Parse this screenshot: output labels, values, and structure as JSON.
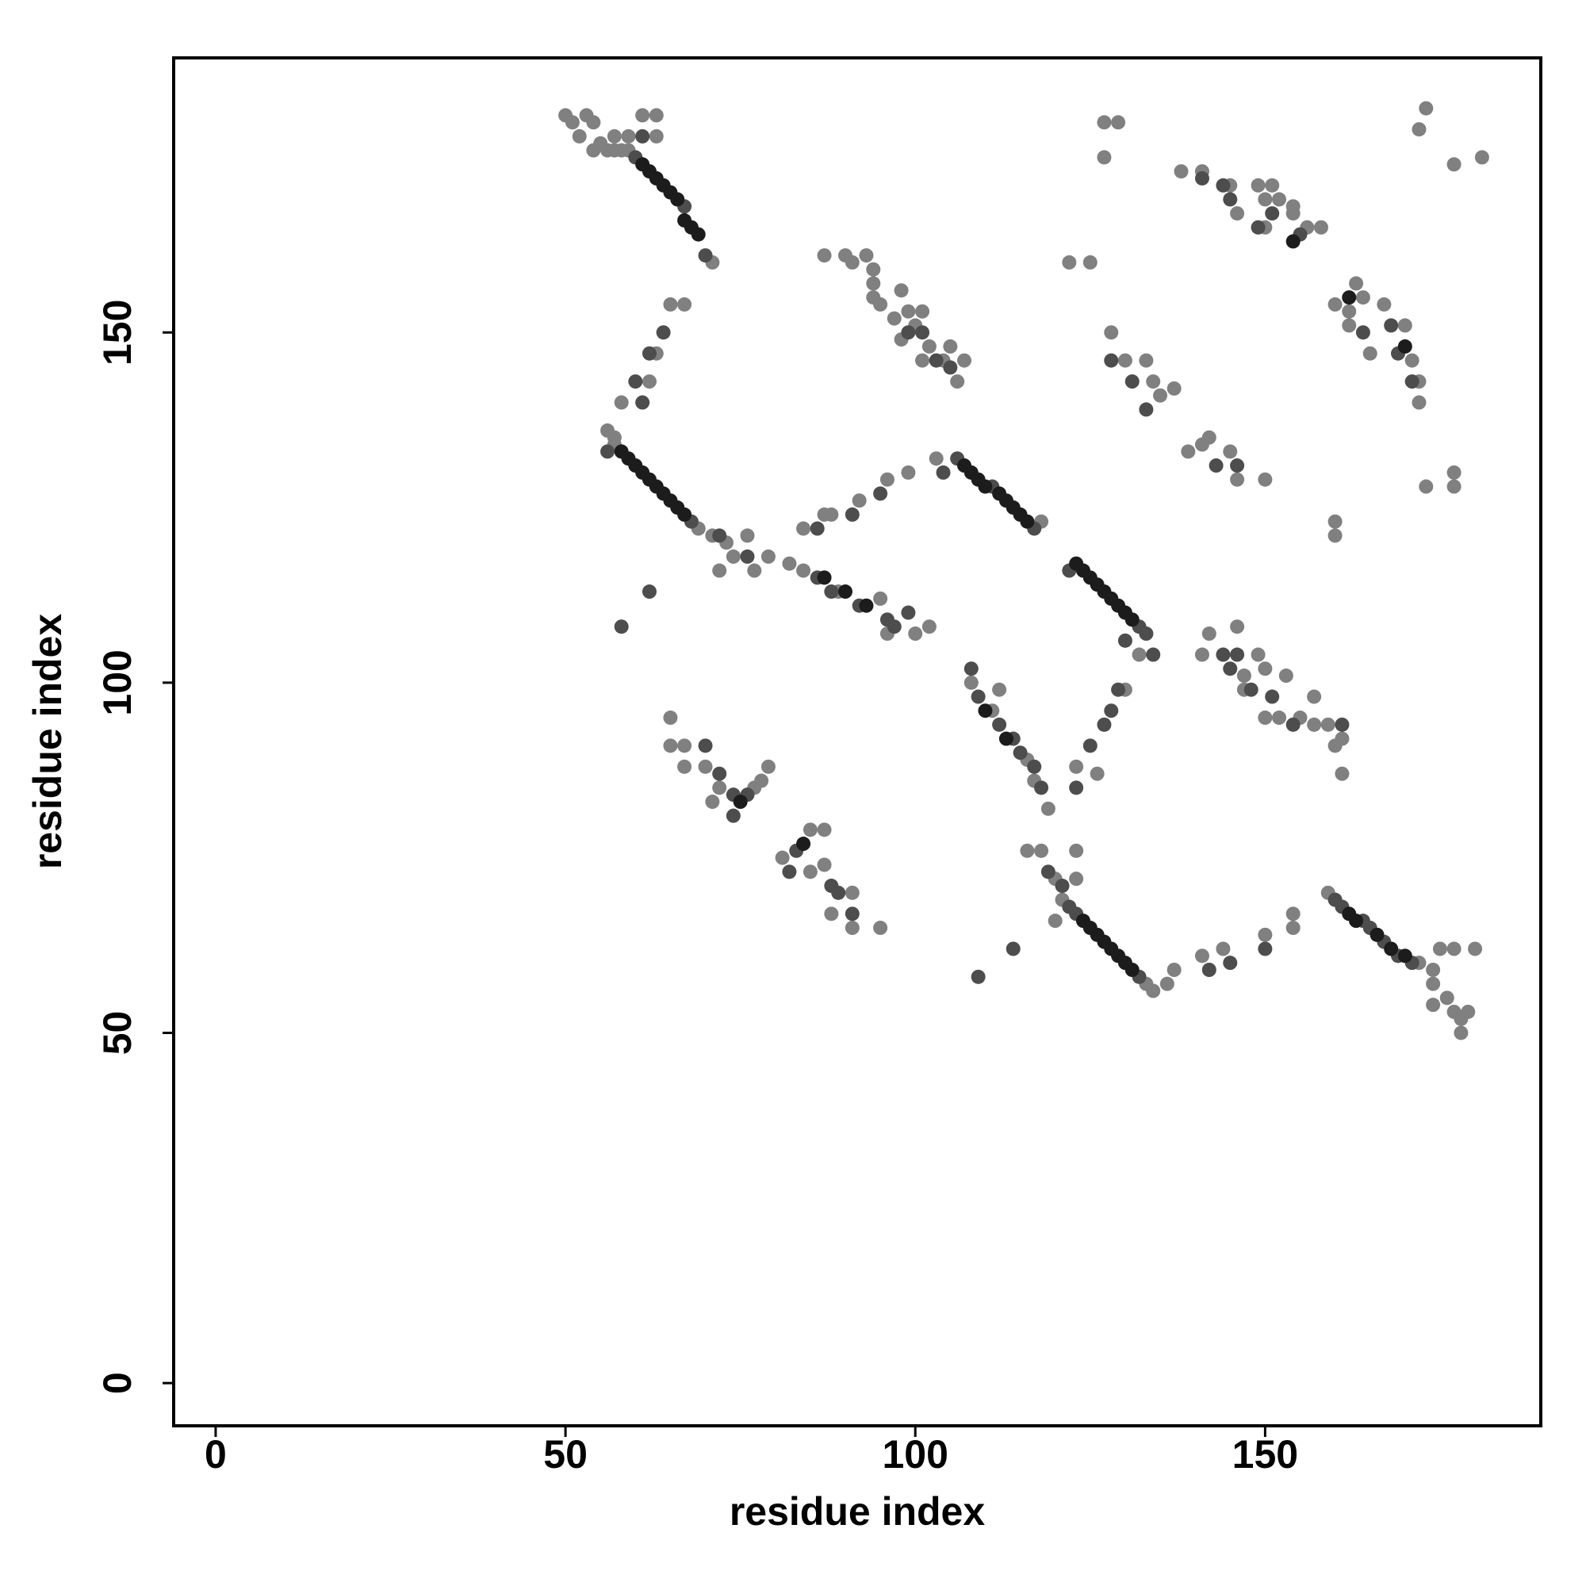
{
  "chart_data": {
    "type": "scatter",
    "xlabel": "residue index",
    "ylabel": "residue index",
    "xlim": [
      -6,
      189.4
    ],
    "ylim": [
      -6.1,
      189.2
    ],
    "xticks": [
      0,
      50,
      100,
      150
    ],
    "yticks": [
      0,
      50,
      100,
      150
    ],
    "series": [
      {
        "color": "#808080",
        "x": [
          50,
          51,
          53,
          54,
          52,
          55,
          54,
          56,
          57,
          58,
          59,
          57,
          59,
          61,
          63,
          63,
          71,
          65,
          67,
          63,
          62,
          58,
          57,
          57,
          56,
          69,
          71,
          73,
          74,
          76,
          77,
          72,
          82,
          79,
          84,
          89,
          95,
          100,
          102,
          96,
          84,
          87,
          88,
          92,
          96,
          99,
          103,
          118,
          87,
          90,
          91,
          93,
          94,
          94,
          94,
          95,
          98,
          97,
          99,
          101,
          102,
          104,
          106,
          107,
          98,
          101,
          105,
          100,
          123,
          126,
          108,
          111,
          116,
          117,
          119,
          112,
          116,
          118,
          120,
          121,
          133,
          134,
          136,
          123,
          120,
          123,
          65,
          65,
          67,
          67,
          70,
          72,
          77,
          78,
          79,
          71,
          81,
          85,
          87,
          85,
          87,
          88,
          91,
          91,
          95,
          137,
          141,
          144,
          150,
          154,
          154,
          159,
          172,
          174,
          174,
          176,
          177,
          178,
          179,
          178,
          180,
          177,
          175,
          174,
          141,
          142,
          147,
          149,
          150,
          150,
          153,
          155,
          157,
          157,
          159,
          160,
          161,
          161,
          146,
          147,
          152,
          128,
          130,
          133,
          134,
          135,
          137,
          130,
          132,
          139,
          141,
          142,
          145,
          146,
          150,
          138,
          141,
          146,
          145,
          149,
          150,
          150,
          152,
          154,
          156,
          158,
          154,
          151,
          160,
          163,
          162,
          164,
          162,
          165,
          167,
          170,
          171,
          172,
          172,
          160,
          160,
          173,
          177,
          177,
          127,
          129,
          127,
          173,
          172,
          177,
          181,
          122,
          125
        ],
        "y": [
          181,
          180,
          181,
          180,
          178,
          177,
          176,
          176,
          176,
          176,
          176,
          178,
          178,
          181,
          181,
          178,
          160,
          154,
          154,
          147,
          143,
          140,
          134,
          135,
          136,
          122,
          121,
          120,
          118,
          121,
          116,
          116,
          117,
          118,
          116,
          113,
          112,
          107,
          108,
          107,
          122,
          124,
          124,
          126,
          129,
          130,
          132,
          123,
          161,
          161,
          160,
          161,
          159,
          157,
          155,
          154,
          156,
          152,
          153,
          153,
          148,
          146,
          143,
          146,
          149,
          146,
          148,
          151,
          88,
          87,
          100,
          96,
          89,
          86,
          82,
          99,
          76,
          76,
          72,
          69,
          57,
          56,
          57,
          76,
          66,
          72,
          95,
          91,
          91,
          88,
          88,
          85,
          85,
          86,
          88,
          83,
          75,
          79,
          79,
          73,
          74,
          67,
          70,
          65,
          65,
          59,
          61,
          62,
          64,
          67,
          65,
          70,
          60,
          59,
          57,
          55,
          53,
          52,
          53,
          50,
          62,
          62,
          62,
          54,
          104,
          107,
          101,
          104,
          102,
          95,
          101,
          95,
          98,
          94,
          94,
          91,
          92,
          87,
          108,
          99,
          95,
          150,
          146,
          146,
          143,
          141,
          142,
          99,
          104,
          133,
          134,
          135,
          133,
          129,
          129,
          173,
          173,
          167,
          171,
          171,
          169,
          165,
          169,
          167,
          165,
          165,
          168,
          171,
          154,
          157,
          153,
          155,
          151,
          147,
          154,
          151,
          146,
          143,
          140,
          123,
          121,
          128,
          130,
          128,
          180,
          180,
          175,
          182,
          179,
          174,
          175,
          160,
          160
        ]
      },
      {
        "color": "#4d4d4d",
        "x": [
          60,
          67,
          70,
          68,
          56,
          106,
          111,
          117,
          122,
          132,
          123,
          132,
          160,
          161,
          164,
          165,
          167,
          169,
          171,
          62,
          64,
          60,
          61,
          70,
          72,
          74,
          76,
          74,
          82,
          83,
          88,
          89,
          91,
          86,
          88,
          92,
          96,
          97,
          99,
          95,
          91,
          86,
          99,
          101,
          103,
          105,
          104,
          108,
          109,
          112,
          114,
          115,
          117,
          118,
          125,
          127,
          128,
          123,
          129,
          130,
          133,
          134,
          121,
          122,
          114,
          119,
          145,
          146,
          148,
          151,
          154,
          161,
          144,
          128,
          131,
          133,
          143,
          146,
          141,
          144,
          145,
          149,
          151,
          155,
          164,
          168,
          169,
          171,
          61,
          62,
          58,
          72,
          76,
          109,
          142,
          145,
          150
        ],
        "y": [
          175,
          168,
          161,
          123,
          133,
          132,
          128,
          122,
          116,
          108,
          67,
          58,
          69,
          68,
          66,
          65,
          63,
          61,
          60,
          147,
          150,
          143,
          140,
          91,
          87,
          84,
          84,
          81,
          73,
          76,
          71,
          70,
          67,
          115,
          113,
          111,
          109,
          108,
          110,
          127,
          124,
          122,
          150,
          150,
          146,
          145,
          130,
          102,
          98,
          94,
          92,
          90,
          88,
          85,
          91,
          94,
          96,
          85,
          99,
          106,
          107,
          104,
          71,
          68,
          62,
          73,
          102,
          104,
          99,
          98,
          94,
          94,
          104,
          146,
          143,
          139,
          131,
          131,
          172,
          171,
          169,
          165,
          167,
          164,
          150,
          151,
          147,
          143,
          178,
          113,
          108,
          121,
          118,
          58,
          59,
          60,
          62
        ]
      },
      {
        "color": "#1c1c1c",
        "x": [
          61,
          62,
          63,
          64,
          65,
          66,
          67,
          68,
          69,
          58,
          59,
          60,
          61,
          62,
          63,
          64,
          65,
          66,
          67,
          107,
          108,
          109,
          110,
          112,
          113,
          114,
          115,
          116,
          123,
          124,
          125,
          126,
          127,
          128,
          129,
          130,
          131,
          124,
          125,
          126,
          127,
          128,
          129,
          130,
          131,
          162,
          163,
          166,
          168,
          170,
          87,
          90,
          93,
          113,
          110,
          75,
          84,
          154,
          162,
          170
        ],
        "y": [
          174,
          173,
          172,
          171,
          170,
          169,
          166,
          165,
          164,
          133,
          132,
          131,
          130,
          129,
          128,
          127,
          126,
          125,
          124,
          131,
          130,
          129,
          128,
          127,
          126,
          125,
          124,
          123,
          117,
          116,
          115,
          114,
          113,
          112,
          111,
          110,
          109,
          66,
          65,
          64,
          63,
          62,
          61,
          60,
          59,
          67,
          66,
          64,
          62,
          61,
          115,
          113,
          111,
          92,
          96,
          83,
          77,
          163,
          155,
          148
        ]
      }
    ]
  }
}
